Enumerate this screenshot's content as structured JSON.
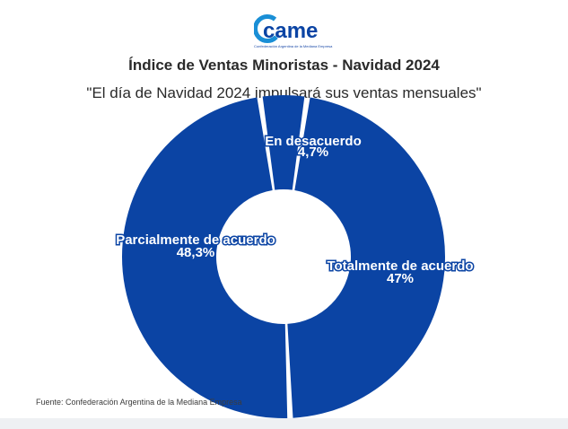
{
  "header": {
    "logo_text": "came",
    "logo_subtitle": "Confederación Argentina de la Mediana Empresa"
  },
  "chart_data": {
    "type": "pie",
    "style": "donut",
    "title": "Índice de Ventas Minoristas - Navidad 2024",
    "subtitle": "\"El día de Navidad 2024 impulsará sus ventas mensuales\"",
    "categories": [
      "En desacuerdo",
      "Totalmente de acuerdo",
      "Parcialmente de acuerdo"
    ],
    "values": [
      4.7,
      47,
      48.3
    ],
    "value_labels": [
      "4,7%",
      "47%",
      "48,3%"
    ],
    "colors": [
      "#0b44a4",
      "#0b44a4",
      "#0b44a4"
    ]
  },
  "footer": {
    "source": "Fuente: Confederación Argentina de la Mediana Empresa"
  }
}
